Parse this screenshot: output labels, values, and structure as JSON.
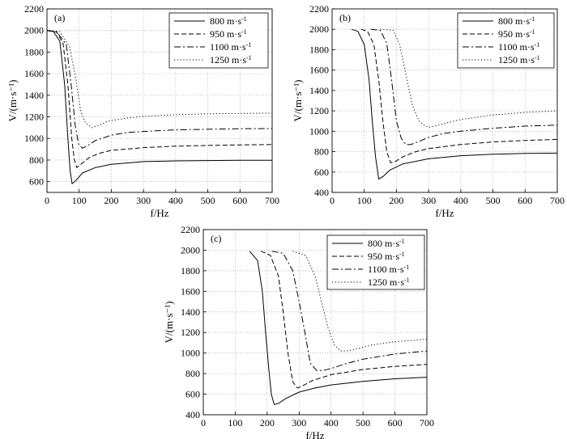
{
  "chart_data": [
    {
      "type": "line",
      "panel_label": "(a)",
      "xlabel": "f/Hz",
      "ylabel": "V/(m·s⁻¹)",
      "xlim": [
        0,
        700
      ],
      "ylim": [
        500,
        2200
      ],
      "xticks": [
        0,
        100,
        200,
        300,
        400,
        500,
        600,
        700
      ],
      "yticks": [
        600,
        800,
        1000,
        1200,
        1400,
        1600,
        1800,
        2000,
        2200
      ],
      "grid": "dotted",
      "legend_position": "top-right",
      "series": [
        {
          "name": "800 m·s-1",
          "style": "solid",
          "x": [
            0,
            20,
            40,
            55,
            65,
            72,
            78,
            90,
            110,
            150,
            200,
            300,
            400,
            500,
            600,
            700
          ],
          "y": [
            2000,
            1990,
            1900,
            1500,
            1000,
            700,
            580,
            610,
            680,
            730,
            760,
            785,
            792,
            795,
            797,
            798
          ]
        },
        {
          "name": "950 m·s-1",
          "style": "dashed",
          "x": [
            0,
            30,
            50,
            65,
            77,
            85,
            93,
            105,
            130,
            160,
            200,
            300,
            400,
            500,
            600,
            700
          ],
          "y": [
            2000,
            1985,
            1880,
            1500,
            1000,
            800,
            730,
            760,
            820,
            860,
            890,
            915,
            928,
            935,
            940,
            943
          ]
        },
        {
          "name": "1100 m·s-1",
          "style": "dashdot",
          "x": [
            0,
            30,
            60,
            75,
            88,
            98,
            110,
            125,
            150,
            200,
            250,
            300,
            400,
            500,
            600,
            700
          ],
          "y": [
            2000,
            1990,
            1870,
            1500,
            1120,
            950,
            910,
            930,
            980,
            1030,
            1055,
            1065,
            1080,
            1085,
            1090,
            1092
          ]
        },
        {
          "name": "1250 m·s-1",
          "style": "dotted",
          "x": [
            0,
            40,
            70,
            90,
            105,
            120,
            140,
            160,
            190,
            250,
            300,
            400,
            500,
            600,
            700
          ],
          "y": [
            2000,
            1990,
            1850,
            1550,
            1250,
            1140,
            1100,
            1120,
            1160,
            1190,
            1205,
            1220,
            1228,
            1232,
            1235
          ]
        }
      ]
    },
    {
      "type": "line",
      "panel_label": "(b)",
      "xlabel": "f/Hz",
      "ylabel": "V/(m·s⁻¹)",
      "xlim": [
        0,
        700
      ],
      "ylim": [
        400,
        2200
      ],
      "xticks": [
        0,
        100,
        200,
        300,
        400,
        500,
        600,
        700
      ],
      "yticks": [
        400,
        600,
        800,
        1000,
        1200,
        1400,
        1600,
        1800,
        2000,
        2200
      ],
      "grid": "dotted",
      "legend_position": "top-right",
      "series": [
        {
          "name": "800 m·s-1",
          "style": "solid",
          "x": [
            60,
            80,
            100,
            115,
            125,
            135,
            145,
            160,
            180,
            220,
            300,
            400,
            500,
            600,
            700
          ],
          "y": [
            2000,
            1980,
            1850,
            1500,
            1100,
            750,
            530,
            560,
            620,
            680,
            730,
            760,
            775,
            782,
            785
          ]
        },
        {
          "name": "950 m·s-1",
          "style": "dashed",
          "x": [
            90,
            110,
            130,
            145,
            158,
            170,
            182,
            195,
            220,
            260,
            300,
            400,
            500,
            600,
            700
          ],
          "y": [
            2000,
            1980,
            1850,
            1500,
            1100,
            800,
            690,
            700,
            750,
            800,
            830,
            870,
            895,
            910,
            920
          ]
        },
        {
          "name": "1100 m·s-1",
          "style": "dashdot",
          "x": [
            120,
            150,
            170,
            185,
            200,
            215,
            230,
            245,
            270,
            300,
            350,
            400,
            500,
            600,
            700
          ],
          "y": [
            2000,
            1990,
            1860,
            1500,
            1100,
            930,
            870,
            870,
            900,
            940,
            980,
            1000,
            1030,
            1050,
            1060
          ]
        },
        {
          "name": "1250 m·s-1",
          "style": "dotted",
          "x": [
            150,
            190,
            210,
            230,
            250,
            270,
            290,
            305,
            330,
            380,
            400,
            500,
            600,
            700
          ],
          "y": [
            2000,
            1990,
            1850,
            1550,
            1250,
            1100,
            1050,
            1040,
            1060,
            1100,
            1115,
            1160,
            1185,
            1200
          ]
        }
      ]
    },
    {
      "type": "line",
      "panel_label": "(c)",
      "xlabel": "f/Hz",
      "ylabel": "V/(m·s⁻¹)",
      "xlim": [
        0,
        700
      ],
      "ylim": [
        400,
        2200
      ],
      "xticks": [
        0,
        100,
        200,
        300,
        400,
        500,
        600,
        700
      ],
      "yticks": [
        400,
        600,
        800,
        1000,
        1200,
        1400,
        1600,
        1800,
        2000,
        2200
      ],
      "grid": "dotted",
      "legend_position": "top-right",
      "series": [
        {
          "name": "800 m·s-1",
          "style": "solid",
          "x": [
            145,
            170,
            185,
            195,
            205,
            213,
            222,
            235,
            260,
            300,
            350,
            400,
            500,
            600,
            700
          ],
          "y": [
            1990,
            1900,
            1600,
            1200,
            850,
            600,
            500,
            510,
            560,
            620,
            660,
            690,
            725,
            750,
            765
          ]
        },
        {
          "name": "950 m·s-1",
          "style": "dashed",
          "x": [
            180,
            210,
            235,
            250,
            265,
            280,
            295,
            310,
            340,
            400,
            500,
            600,
            700
          ],
          "y": [
            1990,
            1950,
            1750,
            1400,
            1000,
            720,
            660,
            680,
            730,
            790,
            840,
            870,
            890
          ]
        },
        {
          "name": "1100 m·s-1",
          "style": "dashdot",
          "x": [
            215,
            250,
            280,
            300,
            318,
            335,
            355,
            375,
            400,
            450,
            500,
            600,
            700
          ],
          "y": [
            1990,
            1970,
            1800,
            1500,
            1200,
            900,
            830,
            830,
            850,
            900,
            940,
            990,
            1020
          ]
        },
        {
          "name": "1250 m·s-1",
          "style": "dotted",
          "x": [
            280,
            320,
            350,
            370,
            390,
            410,
            430,
            450,
            480,
            530,
            600,
            700
          ],
          "y": [
            1990,
            1950,
            1750,
            1500,
            1250,
            1080,
            1020,
            1020,
            1040,
            1080,
            1110,
            1135
          ]
        }
      ]
    }
  ]
}
